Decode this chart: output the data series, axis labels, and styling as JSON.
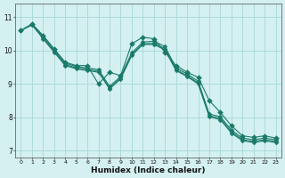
{
  "xlabel": "Humidex (Indice chaleur)",
  "bg_color": "#d4f0f0",
  "grid_color": "#a8d8d8",
  "line_color": "#1a7a6a",
  "xlim": [
    -0.5,
    23.5
  ],
  "ylim": [
    6.8,
    11.4
  ],
  "yticks": [
    7,
    8,
    9,
    10,
    11
  ],
  "xticks": [
    0,
    1,
    2,
    3,
    4,
    5,
    6,
    7,
    8,
    9,
    10,
    11,
    12,
    13,
    14,
    15,
    16,
    17,
    18,
    19,
    20,
    21,
    22,
    23
  ],
  "wavy_x": [
    0,
    1,
    2,
    3,
    4,
    5,
    6,
    7,
    8,
    9,
    10,
    11,
    12,
    13,
    14,
    15,
    16,
    17,
    18,
    19,
    20,
    21,
    22,
    23
  ],
  "wavy_y": [
    10.6,
    10.8,
    10.45,
    10.05,
    9.65,
    9.55,
    9.55,
    9.0,
    9.35,
    9.25,
    10.2,
    10.4,
    10.35,
    9.95,
    9.55,
    9.35,
    9.2,
    8.5,
    8.15,
    7.75,
    7.45,
    7.4,
    7.45,
    7.38
  ],
  "line2_x": [
    0,
    1,
    2,
    3,
    4,
    5,
    6,
    7,
    8,
    9,
    10,
    11,
    12,
    13,
    14,
    15,
    16,
    17,
    18,
    19,
    20,
    21,
    22,
    23
  ],
  "line2_y": [
    10.6,
    10.78,
    10.42,
    10.02,
    9.62,
    9.52,
    9.48,
    9.43,
    8.93,
    9.22,
    9.93,
    10.25,
    10.28,
    10.12,
    9.48,
    9.3,
    9.08,
    8.1,
    8.02,
    7.62,
    7.38,
    7.33,
    7.38,
    7.33
  ],
  "line3_x": [
    0,
    1,
    2,
    3,
    4,
    5,
    6,
    7,
    8,
    9,
    10,
    11,
    12,
    13,
    14,
    15,
    16,
    17,
    18,
    19,
    20,
    21,
    22,
    23
  ],
  "line3_y": [
    10.6,
    10.76,
    10.38,
    9.98,
    9.58,
    9.48,
    9.44,
    9.38,
    8.88,
    9.18,
    9.88,
    10.2,
    10.22,
    10.06,
    9.43,
    9.25,
    9.03,
    8.05,
    7.97,
    7.57,
    7.33,
    7.28,
    7.33,
    7.28
  ],
  "line4_x": [
    1,
    2,
    3,
    4,
    5,
    6,
    7,
    8,
    9,
    10,
    11,
    12,
    13,
    14,
    15,
    16,
    17,
    18,
    19,
    20,
    21,
    22,
    23
  ],
  "line4_y": [
    10.78,
    10.35,
    9.95,
    9.55,
    9.45,
    9.4,
    9.35,
    8.85,
    9.15,
    9.85,
    10.18,
    10.18,
    10.02,
    9.4,
    9.22,
    9.0,
    8.02,
    7.93,
    7.53,
    7.3,
    7.25,
    7.3,
    7.25
  ]
}
